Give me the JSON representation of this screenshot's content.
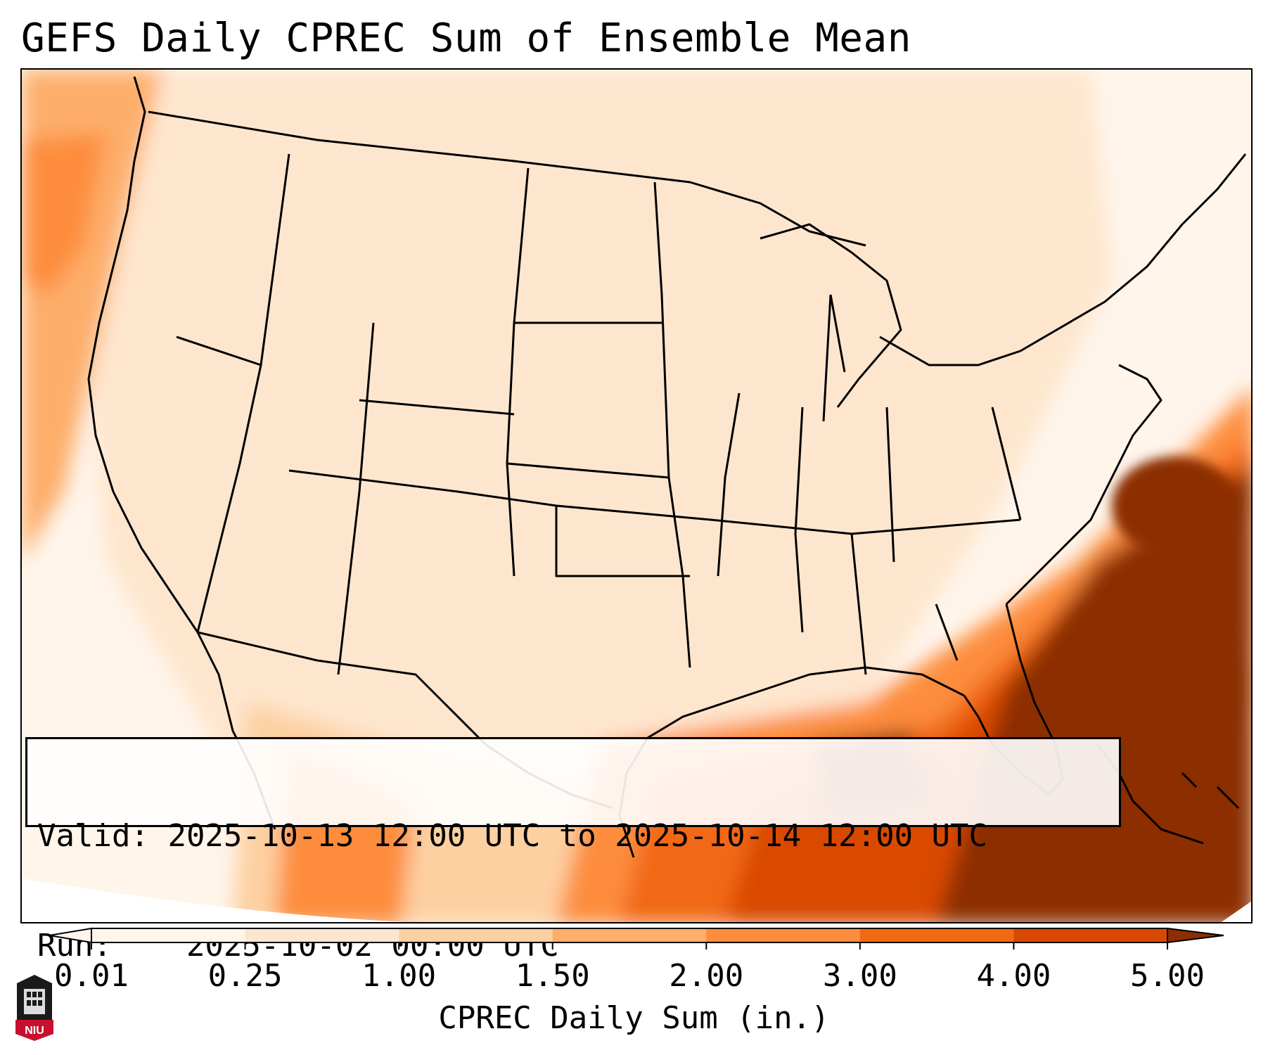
{
  "title": "GEFS Daily CPREC Sum of Ensemble Mean",
  "info_box": {
    "valid_label": "Valid:",
    "valid_value": "2025-10-13 12:00 UTC to 2025-10-14 12:00 UTC",
    "run_label": "Run:",
    "run_value": "2025-10-02 00:00 UTC"
  },
  "colorbar": {
    "label": "CPREC Daily Sum (in.)",
    "ticks": [
      "0.01",
      "0.25",
      "1.00",
      "1.50",
      "2.00",
      "3.00",
      "4.00",
      "5.00"
    ],
    "colors": [
      "#fff5eb",
      "#fee6ce",
      "#fdd0a2",
      "#fdae6b",
      "#fd8d3c",
      "#f16913",
      "#d94801",
      "#8c2d04"
    ],
    "extend": "both"
  },
  "logo": {
    "text": "NIU"
  },
  "map": {
    "region": "Contiguous United States",
    "field": "CPREC daily sum",
    "heaviest_precip_area": "Atlantic off the Southeast coast, Gulf of Mexico, Florida"
  }
}
